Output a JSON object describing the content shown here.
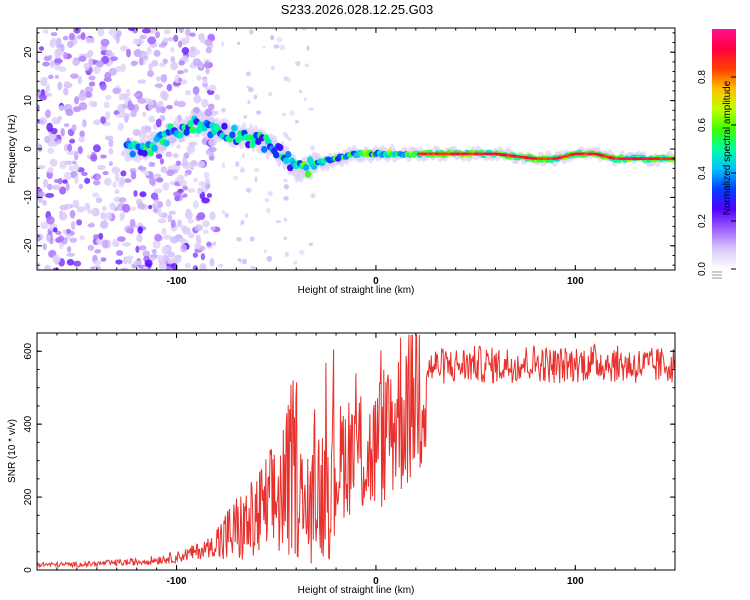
{
  "figure": {
    "title": "S233.2026.028.12.25.G03"
  },
  "chart_data": [
    {
      "type": "heatmap",
      "name": "spectrogram",
      "xlabel": "Height of straight line (km)",
      "ylabel": "Frequency (Hz)",
      "xlim": [
        -170,
        150
      ],
      "ylim": [
        -25,
        25
      ],
      "xticks": [
        -100,
        0,
        100
      ],
      "yticks": [
        -20,
        -10,
        0,
        10,
        20
      ],
      "ridge": {
        "x": [
          -120,
          -110,
          -100,
          -90,
          -80,
          -70,
          -60,
          -50,
          -45,
          -40,
          -35,
          -30,
          -20,
          -10,
          0,
          10,
          20,
          40,
          60,
          80,
          90,
          100,
          110,
          120,
          140,
          150
        ],
        "freq": [
          0,
          1,
          4,
          5,
          4,
          3,
          2,
          0,
          -2,
          -4,
          -4,
          -3,
          -2,
          -1,
          -1,
          -1,
          -1,
          -1,
          -1,
          -2,
          -2,
          -1,
          -1,
          -2,
          -2,
          -2
        ]
      },
      "colorbar": {
        "label": "Normalized spectral amplitude",
        "range": [
          0,
          1
        ],
        "ticks": [
          "0.0",
          "0.2",
          "0.4",
          "0.6",
          "0.8"
        ],
        "colors": [
          "#ffffff",
          "#d8c8f8",
          "#a060ff",
          "#5000ff",
          "#0040ff",
          "#00c0ff",
          "#00ffa0",
          "#40ff00",
          "#c0ff00",
          "#ffc000",
          "#ff4000",
          "#ff0040",
          "#ff1090"
        ]
      }
    },
    {
      "type": "line",
      "name": "snr",
      "xlabel": "Height of straight line (km)",
      "ylabel": "SNR (10 * v/v)",
      "xlim": [
        -170,
        150
      ],
      "ylim": [
        0,
        650
      ],
      "xticks": [
        -100,
        0,
        100
      ],
      "yticks": [
        0,
        200,
        400,
        600
      ],
      "color": "#e8302c",
      "x": [
        -170,
        -160,
        -150,
        -140,
        -130,
        -120,
        -110,
        -100,
        -90,
        -80,
        -75,
        -70,
        -65,
        -60,
        -55,
        -50,
        -45,
        -42,
        -40,
        -38,
        -35,
        -32,
        -30,
        -28,
        -25,
        -22,
        -20,
        -15,
        -10,
        -5,
        0,
        5,
        10,
        15,
        20,
        25,
        30,
        40,
        50,
        60,
        70,
        80,
        90,
        100,
        110,
        120,
        130,
        140,
        150
      ],
      "y": [
        15,
        15,
        15,
        17,
        20,
        22,
        28,
        35,
        50,
        70,
        90,
        110,
        120,
        140,
        170,
        190,
        230,
        280,
        300,
        200,
        150,
        160,
        280,
        200,
        260,
        250,
        280,
        320,
        340,
        300,
        330,
        380,
        420,
        460,
        520,
        550,
        560,
        560,
        565,
        560,
        565,
        570,
        560,
        565,
        570,
        565,
        560,
        560,
        565
      ]
    }
  ]
}
